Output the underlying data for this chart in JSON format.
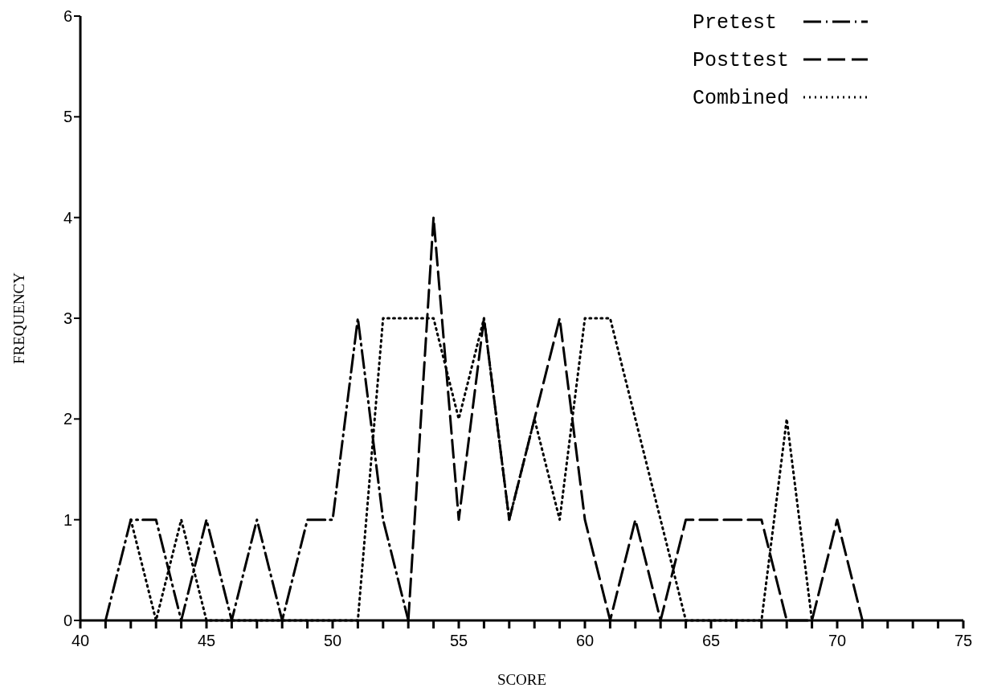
{
  "chart_data": {
    "type": "line",
    "xlabel": "SCORE",
    "ylabel": "FREQUENCY",
    "x": [
      41,
      42,
      43,
      44,
      45,
      46,
      47,
      48,
      49,
      50,
      51,
      52,
      53,
      54,
      55,
      56,
      57,
      58,
      59,
      60,
      61,
      62,
      63,
      64,
      65,
      66,
      67,
      68,
      69,
      70,
      71
    ],
    "series": [
      {
        "name": "Pretest",
        "color": "#000000",
        "line_style": "dashdot",
        "values": [
          0,
          1,
          1,
          0,
          1,
          0,
          1,
          0,
          1,
          1,
          3,
          1,
          0,
          null,
          null,
          null,
          null,
          null,
          null,
          null,
          null,
          null,
          null,
          null,
          null,
          null,
          null,
          null,
          null,
          null,
          null
        ]
      },
      {
        "name": "Posttest",
        "color": "#000000",
        "line_style": "dashed",
        "values": [
          null,
          null,
          null,
          null,
          null,
          null,
          null,
          null,
          null,
          null,
          null,
          null,
          0,
          4,
          1,
          3,
          1,
          2,
          3,
          1,
          0,
          1,
          0,
          1,
          1,
          1,
          1,
          0,
          0,
          1,
          0
        ]
      },
      {
        "name": "Combined",
        "color": "#000000",
        "line_style": "dotted",
        "x": [
          42,
          43,
          44,
          45,
          51,
          52,
          53,
          54,
          55,
          56,
          57,
          58,
          59,
          60,
          61,
          62,
          63,
          64,
          67,
          68,
          69
        ],
        "values": [
          1,
          0,
          1,
          0,
          0,
          3,
          3,
          3,
          2,
          3,
          1,
          2,
          1,
          3,
          3,
          2,
          1,
          0,
          0,
          2,
          0
        ]
      }
    ],
    "xlim": [
      40,
      75
    ],
    "xticks": [
      40,
      {
        "value": 41,
        "label": null
      },
      {
        "value": 42,
        "label": null
      },
      {
        "value": 43,
        "label": null
      },
      {
        "value": 44,
        "label": null
      },
      45,
      {
        "value": 46,
        "label": null
      },
      {
        "value": 47,
        "label": null
      },
      {
        "value": 48,
        "label": null
      },
      {
        "value": 49,
        "label": null
      },
      50,
      {
        "value": 51,
        "label": null
      },
      {
        "value": 52,
        "label": null
      },
      {
        "value": 53,
        "label": null
      },
      {
        "value": 54,
        "label": null
      },
      55,
      {
        "value": 56,
        "label": null
      },
      {
        "value": 57,
        "label": null
      },
      {
        "value": 58,
        "label": null
      },
      {
        "value": 59,
        "label": null
      },
      60,
      {
        "value": 61,
        "label": null
      },
      {
        "value": 62,
        "label": null
      },
      {
        "value": 63,
        "label": null
      },
      {
        "value": 64,
        "label": null
      },
      65,
      {
        "value": 66,
        "label": null
      },
      {
        "value": 67,
        "label": null
      },
      {
        "value": 68,
        "label": null
      },
      {
        "value": 69,
        "label": null
      },
      70,
      {
        "value": 71,
        "label": null
      },
      {
        "value": 72,
        "label": null
      },
      {
        "value": 73,
        "label": null
      },
      {
        "value": 74,
        "label": null
      },
      75
    ],
    "ylim": [
      0,
      6
    ],
    "yticks": [
      0,
      1,
      2,
      3,
      4,
      5,
      6
    ],
    "grid": false,
    "legend": "top right",
    "marker": "none"
  }
}
